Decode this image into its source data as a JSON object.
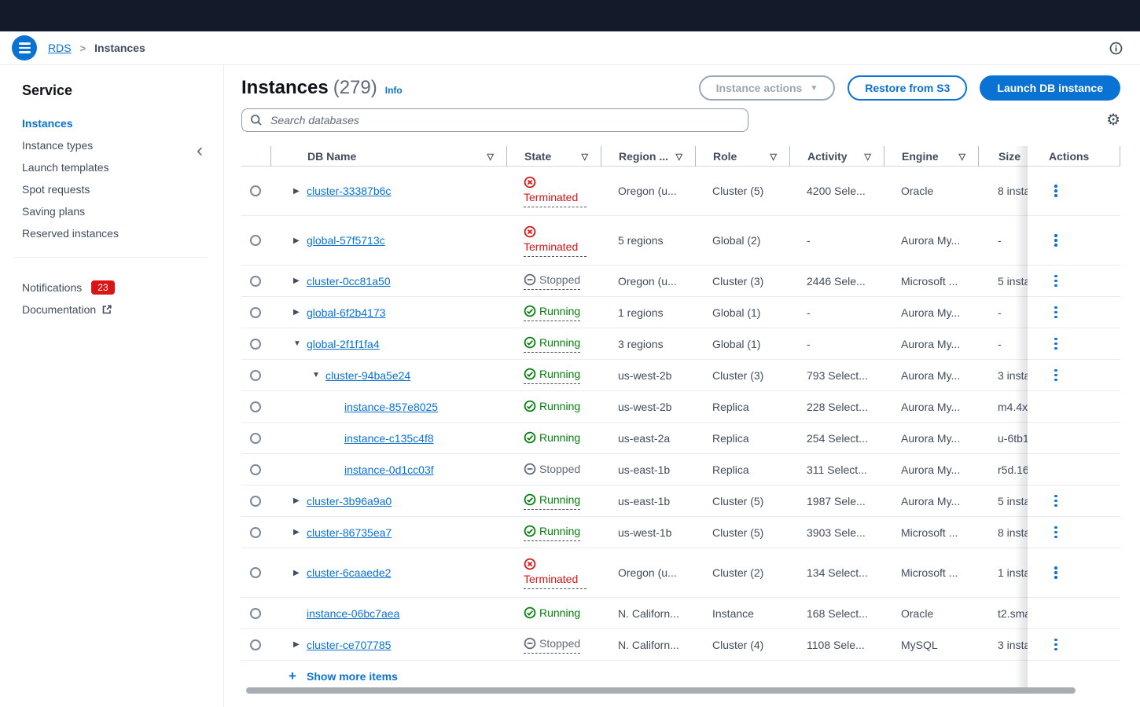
{
  "colors": {
    "accent": "#0972d3",
    "success": "#037f0c",
    "error": "#d91515",
    "muted": "#5f6b7a",
    "text": "#414d5c",
    "heading": "#0f141a",
    "topnav": "#131b2b",
    "border": "#e9ebed"
  },
  "icons": {
    "sort": "▽",
    "caret": "▼",
    "collapsed": "▶",
    "expanded": "▼",
    "plus": "+",
    "gear": "⚙",
    "breadcrumb_sep": ">",
    "collapse_panel": "‹"
  },
  "breadcrumb": {
    "root": "RDS",
    "current": "Instances"
  },
  "sidebar": {
    "title": "Service",
    "items": [
      {
        "label": "Instances",
        "active": true
      },
      {
        "label": "Instance types",
        "active": false
      },
      {
        "label": "Launch templates",
        "active": false
      },
      {
        "label": "Spot requests",
        "active": false
      },
      {
        "label": "Saving plans",
        "active": false
      },
      {
        "label": "Reserved instances",
        "active": false
      }
    ],
    "footer_items": [
      {
        "label": "Notifications",
        "badge": "23",
        "external": false
      },
      {
        "label": "Documentation",
        "badge": null,
        "external": true
      }
    ]
  },
  "header": {
    "title": "Instances",
    "count": "(279)",
    "info_label": "Info",
    "buttons": {
      "instance_actions": "Instance actions",
      "restore": "Restore from S3",
      "launch": "Launch DB instance"
    }
  },
  "search": {
    "placeholder": "Search databases"
  },
  "table": {
    "columns": [
      {
        "key": "name",
        "label": "DB Name",
        "sortable": true
      },
      {
        "key": "state",
        "label": "State",
        "sortable": true
      },
      {
        "key": "region",
        "label": "Region ...",
        "sortable": true
      },
      {
        "key": "role",
        "label": "Role",
        "sortable": true
      },
      {
        "key": "activity",
        "label": "Activity",
        "sortable": true
      },
      {
        "key": "engine",
        "label": "Engine",
        "sortable": true
      },
      {
        "key": "size",
        "label": "Size",
        "sortable": false
      },
      {
        "key": "actions",
        "label": "Actions",
        "sortable": false
      }
    ],
    "rows": [
      {
        "name": "cluster-33387b6c",
        "level": 0,
        "expand": "collapsed",
        "state": "Terminated",
        "state_underlined": true,
        "region": "Oregon (u...",
        "role": "Cluster (5)",
        "activity": "4200 Sele...",
        "engine": "Oracle",
        "size": "8 insta",
        "has_actions": true
      },
      {
        "name": "global-57f5713c",
        "level": 0,
        "expand": "collapsed",
        "state": "Terminated",
        "state_underlined": true,
        "region": "5 regions",
        "role": "Global (2)",
        "activity": "-",
        "engine": "Aurora My...",
        "size": "-",
        "has_actions": true
      },
      {
        "name": "cluster-0cc81a50",
        "level": 0,
        "expand": "collapsed",
        "state": "Stopped",
        "state_underlined": true,
        "region": "Oregon (u...",
        "role": "Cluster (3)",
        "activity": "2446 Sele...",
        "engine": "Microsoft ...",
        "size": "5 insta",
        "has_actions": true
      },
      {
        "name": "global-6f2b4173",
        "level": 0,
        "expand": "collapsed",
        "state": "Running",
        "state_underlined": true,
        "region": "1 regions",
        "role": "Global (1)",
        "activity": "-",
        "engine": "Aurora My...",
        "size": "-",
        "has_actions": true
      },
      {
        "name": "global-2f1f1fa4",
        "level": 0,
        "expand": "expanded",
        "state": "Running",
        "state_underlined": true,
        "region": "3 regions",
        "role": "Global (1)",
        "activity": "-",
        "engine": "Aurora My...",
        "size": "-",
        "has_actions": true
      },
      {
        "name": "cluster-94ba5e24",
        "level": 1,
        "expand": "expanded",
        "state": "Running",
        "state_underlined": true,
        "region": "us-west-2b",
        "role": "Cluster (3)",
        "activity": "793 Select...",
        "engine": "Aurora My...",
        "size": "3 insta",
        "has_actions": true
      },
      {
        "name": "instance-857e8025",
        "level": 2,
        "expand": "none",
        "state": "Running",
        "state_underlined": false,
        "region": "us-west-2b",
        "role": "Replica",
        "activity": "228 Select...",
        "engine": "Aurora My...",
        "size": "m4.4x",
        "has_actions": false
      },
      {
        "name": "instance-c135c4f8",
        "level": 2,
        "expand": "none",
        "state": "Running",
        "state_underlined": false,
        "region": "us-east-2a",
        "role": "Replica",
        "activity": "254 Select...",
        "engine": "Aurora My...",
        "size": "u-6tb1",
        "has_actions": false
      },
      {
        "name": "instance-0d1cc03f",
        "level": 2,
        "expand": "none",
        "state": "Stopped",
        "state_underlined": false,
        "region": "us-east-1b",
        "role": "Replica",
        "activity": "311 Select...",
        "engine": "Aurora My...",
        "size": "r5d.16",
        "has_actions": false
      },
      {
        "name": "cluster-3b96a9a0",
        "level": 0,
        "expand": "collapsed",
        "state": "Running",
        "state_underlined": true,
        "region": "us-east-1b",
        "role": "Cluster (5)",
        "activity": "1987 Sele...",
        "engine": "Aurora My...",
        "size": "5 insta",
        "has_actions": true
      },
      {
        "name": "cluster-86735ea7",
        "level": 0,
        "expand": "collapsed",
        "state": "Running",
        "state_underlined": true,
        "region": "us-west-1b",
        "role": "Cluster (5)",
        "activity": "3903 Sele...",
        "engine": "Microsoft ...",
        "size": "8 insta",
        "has_actions": true
      },
      {
        "name": "cluster-6caaede2",
        "level": 0,
        "expand": "collapsed",
        "state": "Terminated",
        "state_underlined": true,
        "region": "Oregon (u...",
        "role": "Cluster (2)",
        "activity": "134 Select...",
        "engine": "Microsoft ...",
        "size": "1 insta",
        "has_actions": true
      },
      {
        "name": "instance-06bc7aea",
        "level": 0,
        "expand": "none",
        "state": "Running",
        "state_underlined": false,
        "region": "N. Californ...",
        "role": "Instance",
        "activity": "168 Select...",
        "engine": "Oracle",
        "size": "t2.sma",
        "has_actions": false
      },
      {
        "name": "cluster-ce707785",
        "level": 0,
        "expand": "collapsed",
        "state": "Stopped",
        "state_underlined": true,
        "region": "N. Californ...",
        "role": "Cluster (4)",
        "activity": "1108 Sele...",
        "engine": "MySQL",
        "size": "3 insta",
        "has_actions": true
      }
    ],
    "show_more_label": "Show more items"
  }
}
